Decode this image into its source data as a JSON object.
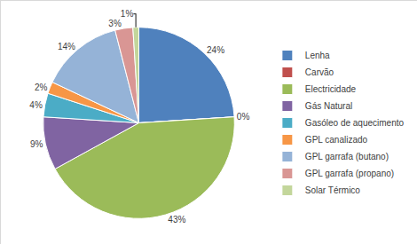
{
  "chart_data": {
    "type": "pie",
    "categories": [
      "Lenha",
      "Carvão",
      "Electricidade",
      "Gás Natural",
      "Gasóleo de aquecimento",
      "GPL canalizado",
      "GPL garrafa (butano)",
      "GPL garrafa (propano)",
      "Solar Térmico"
    ],
    "values": [
      24,
      0,
      43,
      9,
      4,
      2,
      14,
      3,
      1
    ],
    "value_labels": [
      "24%",
      "0%",
      "43%",
      "9%",
      "4%",
      "2%",
      "14%",
      "3%",
      "1%"
    ],
    "colors": [
      "#4f81bd",
      "#c0504d",
      "#9bbb59",
      "#8064a2",
      "#4bacc6",
      "#f79646",
      "#95b3d7",
      "#d99694",
      "#c3d69b"
    ],
    "data_labels": true,
    "legend": "right"
  }
}
